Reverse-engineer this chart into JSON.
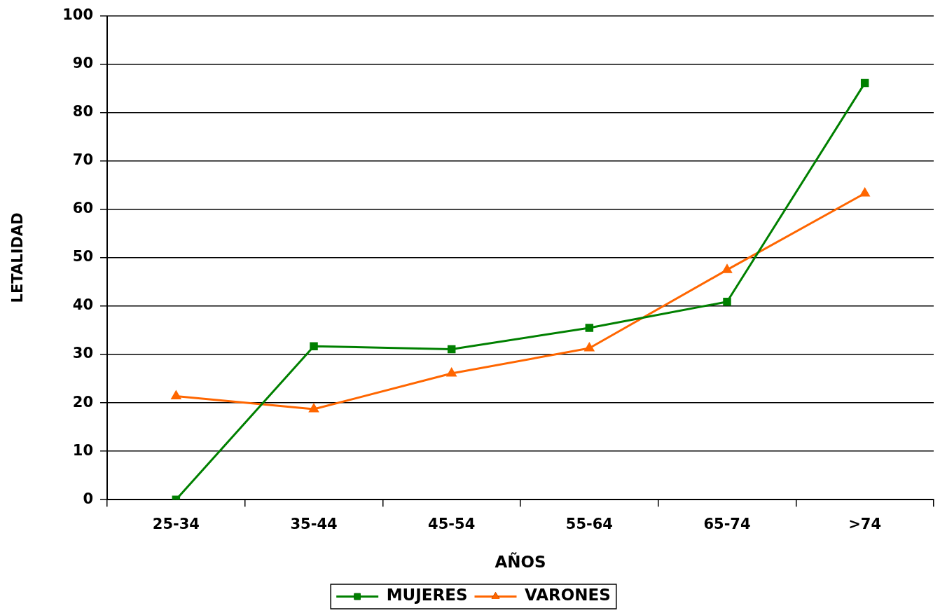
{
  "chart_data": {
    "type": "line",
    "xlabel": "AÑOS",
    "ylabel": "LETALIDAD",
    "categories": [
      "25-34",
      "35-44",
      "45-54",
      "55-64",
      "65-74",
      ">74"
    ],
    "series": [
      {
        "name": "MUJERES",
        "color": "#008000",
        "marker": "square",
        "values": [
          0,
          31.7,
          31.1,
          35.5,
          40.9,
          86.1
        ]
      },
      {
        "name": "VARONES",
        "color": "#ff6600",
        "marker": "triangle",
        "values": [
          21.4,
          18.7,
          26.1,
          31.3,
          47.5,
          63.3
        ]
      }
    ],
    "ylim": [
      0,
      100
    ],
    "yticks": [
      0,
      10,
      20,
      30,
      40,
      50,
      60,
      70,
      80,
      90,
      100
    ],
    "grid": "y",
    "legend": "bottom",
    "line_style": "solid"
  }
}
